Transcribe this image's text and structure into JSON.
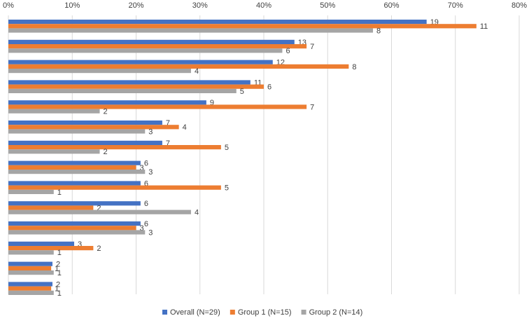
{
  "chart_data": {
    "type": "bar",
    "orientation": "horizontal",
    "categories": [
      null,
      null,
      null,
      null,
      null,
      null,
      null,
      null,
      null,
      null,
      null,
      null,
      null,
      null
    ],
    "series": [
      {
        "name": "Overall (N=29)",
        "color": "#4472c4",
        "values": [
          65.5,
          44.8,
          41.4,
          37.9,
          31.0,
          24.1,
          24.1,
          20.7,
          20.7,
          20.7,
          20.7,
          10.3,
          6.9,
          6.9
        ],
        "counts": [
          19,
          13,
          12,
          11,
          9,
          7,
          7,
          6,
          6,
          6,
          6,
          3,
          2,
          2
        ]
      },
      {
        "name": "Group 1 (N=15)",
        "color": "#ed7d31",
        "values": [
          73.3,
          46.7,
          53.3,
          40.0,
          46.7,
          26.7,
          33.3,
          20.0,
          33.3,
          13.3,
          20.0,
          13.3,
          6.7,
          6.7
        ],
        "counts": [
          11,
          7,
          8,
          6,
          7,
          4,
          5,
          3,
          5,
          2,
          3,
          2,
          1,
          1
        ]
      },
      {
        "name": "Group 2 (N=14)",
        "color": "#a5a5a5",
        "values": [
          57.1,
          42.9,
          28.6,
          35.7,
          14.3,
          21.4,
          14.3,
          21.4,
          7.1,
          28.6,
          21.4,
          7.1,
          7.1,
          7.1
        ],
        "counts": [
          8,
          6,
          4,
          5,
          2,
          3,
          2,
          3,
          1,
          4,
          3,
          1,
          1,
          1
        ]
      }
    ],
    "xlim": [
      0,
      80
    ],
    "xticks": [
      {
        "value": 0,
        "label": "0%"
      },
      {
        "value": 10,
        "label": "10%"
      },
      {
        "value": 20,
        "label": "20%"
      },
      {
        "value": 30,
        "label": "30%"
      },
      {
        "value": 40,
        "label": "40%"
      },
      {
        "value": 50,
        "label": "50%"
      },
      {
        "value": 60,
        "label": "60%"
      },
      {
        "value": 70,
        "label": "70%"
      },
      {
        "value": 80,
        "label": "80%"
      }
    ],
    "grid": true,
    "legend": "bottom"
  }
}
